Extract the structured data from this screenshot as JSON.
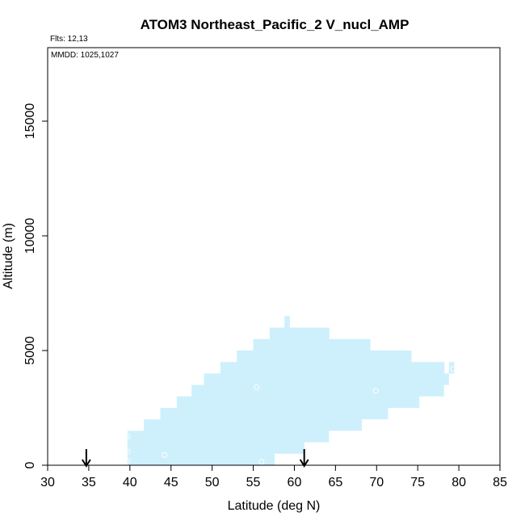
{
  "chart_data": {
    "type": "heatmap",
    "title": "ATOM3 Northeast_Pacific_2 V_nucl_AMP",
    "flights_label": "Flts: 12,13",
    "dates_label": "MMDD: 1025,1027",
    "xlabel": "Latitude (deg N)",
    "ylabel": "Altitude (m)",
    "xlim": [
      30,
      85
    ],
    "ylim": [
      0,
      18000
    ],
    "xticks": [
      30,
      35,
      40,
      45,
      50,
      55,
      60,
      65,
      70,
      75,
      80,
      85
    ],
    "yticks": [
      0,
      5000,
      10000,
      15000
    ],
    "fill_color": "#cdf0fc",
    "marker_color": "#ffffff",
    "coverage_columns": [
      {
        "lat": [
          39.7,
          41.7
        ],
        "alt": [
          0,
          1500
        ]
      },
      {
        "lat": [
          41.7,
          43.7
        ],
        "alt": [
          0,
          2000
        ]
      },
      {
        "lat": [
          43.7,
          45.7
        ],
        "alt": [
          0,
          2500
        ]
      },
      {
        "lat": [
          45.7,
          47.5
        ],
        "alt": [
          0,
          3000
        ]
      },
      {
        "lat": [
          47.5,
          49.0
        ],
        "alt": [
          0,
          3500
        ]
      },
      {
        "lat": [
          49.0,
          51.0
        ],
        "alt": [
          0,
          4000
        ]
      },
      {
        "lat": [
          51.0,
          53.0
        ],
        "alt": [
          0,
          4500
        ]
      },
      {
        "lat": [
          53.0,
          55.0
        ],
        "alt": [
          0,
          5000
        ]
      },
      {
        "lat": [
          55.0,
          57.0
        ],
        "alt": [
          0,
          5500
        ]
      },
      {
        "lat": [
          57.0,
          58.8
        ],
        "alt": [
          0,
          6000
        ]
      },
      {
        "lat": [
          58.8,
          59.4
        ],
        "alt": [
          0,
          6500
        ]
      },
      {
        "lat": [
          59.4,
          61.2
        ],
        "alt": [
          0,
          6000
        ]
      },
      {
        "lat": [
          61.2,
          64.2
        ],
        "alt": [
          0,
          6000
        ]
      },
      {
        "lat": [
          64.2,
          68.2
        ],
        "alt": [
          0,
          5500
        ]
      },
      {
        "lat": [
          68.2,
          69.2
        ],
        "alt": [
          0,
          5500
        ]
      },
      {
        "lat": [
          69.2,
          74.2
        ],
        "alt": [
          0,
          5000
        ]
      },
      {
        "lat": [
          74.2,
          78.2
        ],
        "alt": [
          0,
          4500
        ]
      },
      {
        "lat": [
          78.2,
          78.8
        ],
        "alt": [
          0,
          4000
        ]
      },
      {
        "lat": [
          78.8,
          79.4
        ],
        "alt": [
          0,
          4500
        ]
      }
    ],
    "coverage_gaps": [
      {
        "lat": [
          57.6,
          61.2
        ],
        "alt": [
          0,
          500
        ]
      },
      {
        "lat": [
          61.2,
          64.2
        ],
        "alt": [
          0,
          1000
        ]
      },
      {
        "lat": [
          64.2,
          68.2
        ],
        "alt": [
          0,
          1500
        ]
      },
      {
        "lat": [
          68.2,
          71.4
        ],
        "alt": [
          0,
          2000
        ]
      },
      {
        "lat": [
          71.4,
          75.2
        ],
        "alt": [
          0,
          2500
        ]
      },
      {
        "lat": [
          75.2,
          78.2
        ],
        "alt": [
          0,
          3000
        ]
      },
      {
        "lat": [
          78.2,
          78.8
        ],
        "alt": [
          0,
          3500
        ]
      },
      {
        "lat": [
          78.8,
          79.4
        ],
        "alt": [
          0,
          4000
        ]
      }
    ],
    "markers": [
      {
        "lat": 39.7,
        "alt": 1250
      },
      {
        "lat": 39.7,
        "alt": 600
      },
      {
        "lat": 39.7,
        "alt": 200
      },
      {
        "lat": 44.2,
        "alt": 450
      },
      {
        "lat": 55.4,
        "alt": 3400
      },
      {
        "lat": 56.0,
        "alt": 150
      },
      {
        "lat": 69.9,
        "alt": 3250
      },
      {
        "lat": 79.3,
        "alt": 4200
      }
    ],
    "arrows": [
      {
        "lat": 34.7
      },
      {
        "lat": 61.2
      }
    ]
  }
}
